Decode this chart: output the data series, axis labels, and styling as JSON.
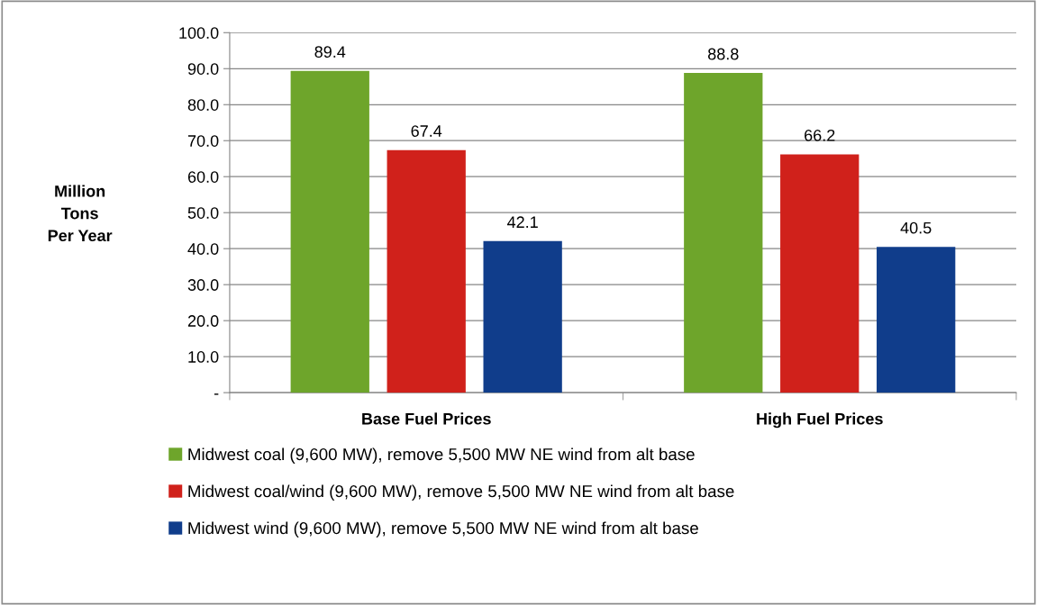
{
  "chart_data": {
    "type": "bar",
    "ylabel": "Million\nTons\nPer Year",
    "categories": [
      "Base Fuel Prices",
      "High Fuel Prices"
    ],
    "series": [
      {
        "name": "Midwest coal (9,600 MW), remove 5,500 MW NE wind from alt base",
        "color": "#6ea52b",
        "values": [
          89.4,
          88.8
        ]
      },
      {
        "name": "Midwest coal/wind (9,600 MW), remove 5,500 MW NE wind from alt base",
        "color": "#d0211b",
        "values": [
          67.4,
          66.2
        ]
      },
      {
        "name": "Midwest wind (9,600 MW), remove 5,500 MW NE wind from alt base",
        "color": "#103d8b",
        "values": [
          42.1,
          40.5
        ]
      }
    ],
    "ylim": [
      0,
      100
    ],
    "yticks": [
      {
        "value": 0,
        "label": "-"
      },
      {
        "value": 10,
        "label": "10.0"
      },
      {
        "value": 20,
        "label": "20.0"
      },
      {
        "value": 30,
        "label": "30.0"
      },
      {
        "value": 40,
        "label": "40.0"
      },
      {
        "value": 50,
        "label": "50.0"
      },
      {
        "value": 60,
        "label": "60.0"
      },
      {
        "value": 70,
        "label": "70.0"
      },
      {
        "value": 80,
        "label": "80.0"
      },
      {
        "value": 90,
        "label": "90.0"
      },
      {
        "value": 100,
        "label": "100.0"
      }
    ],
    "grid": "y",
    "legend": "bottom",
    "data_labels": true
  }
}
